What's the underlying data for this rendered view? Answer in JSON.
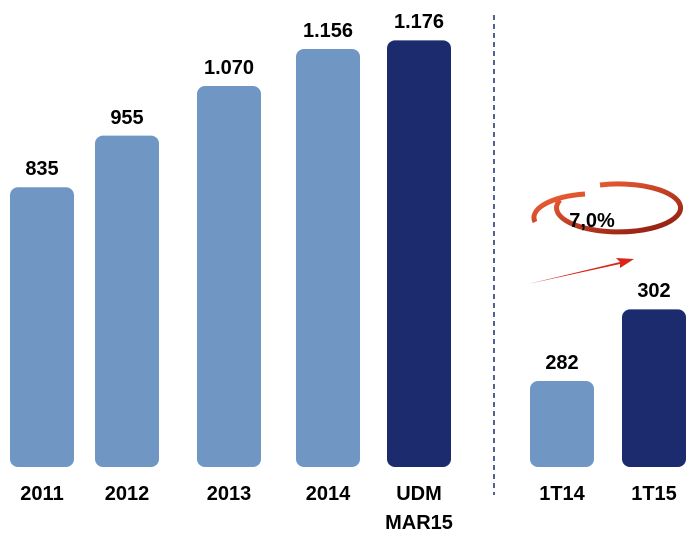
{
  "chart_data": [
    {
      "type": "bar",
      "categories": [
        "2011",
        "2012",
        "2013",
        "2014",
        "UDM MAR15"
      ],
      "values": [
        835,
        955,
        1070,
        1156,
        1176
      ],
      "value_labels": [
        "835",
        "955",
        "1.070",
        "1.156",
        "1.176"
      ],
      "colors": [
        "#7096c4",
        "#7096c4",
        "#7096c4",
        "#7096c4",
        "#1b2b6e"
      ],
      "ylim": [
        186,
        1200
      ]
    },
    {
      "type": "bar",
      "categories": [
        "1T14",
        "1T15"
      ],
      "values": [
        282,
        302
      ],
      "value_labels": [
        "282",
        "302"
      ],
      "colors": [
        "#7096c4",
        "#1b2b6e"
      ],
      "ylim": [
        258,
        380
      ],
      "annotation": "7,0%"
    }
  ]
}
